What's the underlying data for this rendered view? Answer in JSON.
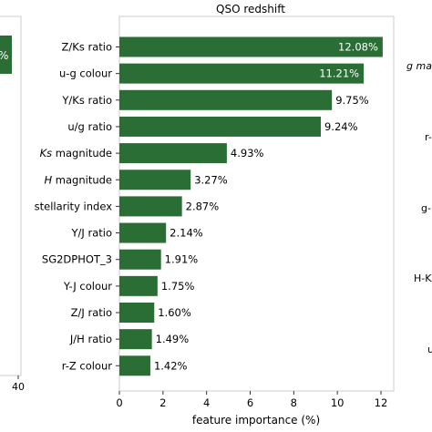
{
  "colors": {
    "bar": "#2b6e35",
    "frame": "#cccccc",
    "inside_label": "#ffffff",
    "outside_label": "#000000"
  },
  "left_panel": {
    "bar_label_fragment": "%",
    "xticks": [
      "40"
    ]
  },
  "right_panel": {
    "labels": [
      "g ma",
      "r-",
      "g-",
      "H-K",
      "u"
    ]
  },
  "chart_data": {
    "type": "bar",
    "orientation": "horizontal",
    "title": "QSO redshift",
    "xlabel": "feature importance (%)",
    "ylabel": "",
    "xlim": [
      0,
      12.6
    ],
    "xticks": [
      0,
      2,
      4,
      6,
      8,
      10,
      12
    ],
    "grid": false,
    "categories": [
      "Z/Ks ratio",
      "u-g colour",
      "Y/Ks ratio",
      "u/g ratio",
      "Ks magnitude",
      "H magnitude",
      "stellarity index",
      "Y/J ratio",
      "SG2DPHOT_3",
      "Y-J colour",
      "Z/J ratio",
      "J/H ratio",
      "r-Z colour"
    ],
    "italic_categories": [
      "Ks",
      "H"
    ],
    "values": [
      12.08,
      11.21,
      9.75,
      9.24,
      4.93,
      3.27,
      2.87,
      2.14,
      1.91,
      1.75,
      1.6,
      1.49,
      1.42
    ],
    "value_labels": [
      "12.08%",
      "11.21%",
      "9.75%",
      "9.24%",
      "4.93%",
      "3.27%",
      "2.87%",
      "2.14%",
      "1.91%",
      "1.75%",
      "1.60%",
      "1.49%",
      "1.42%"
    ]
  }
}
